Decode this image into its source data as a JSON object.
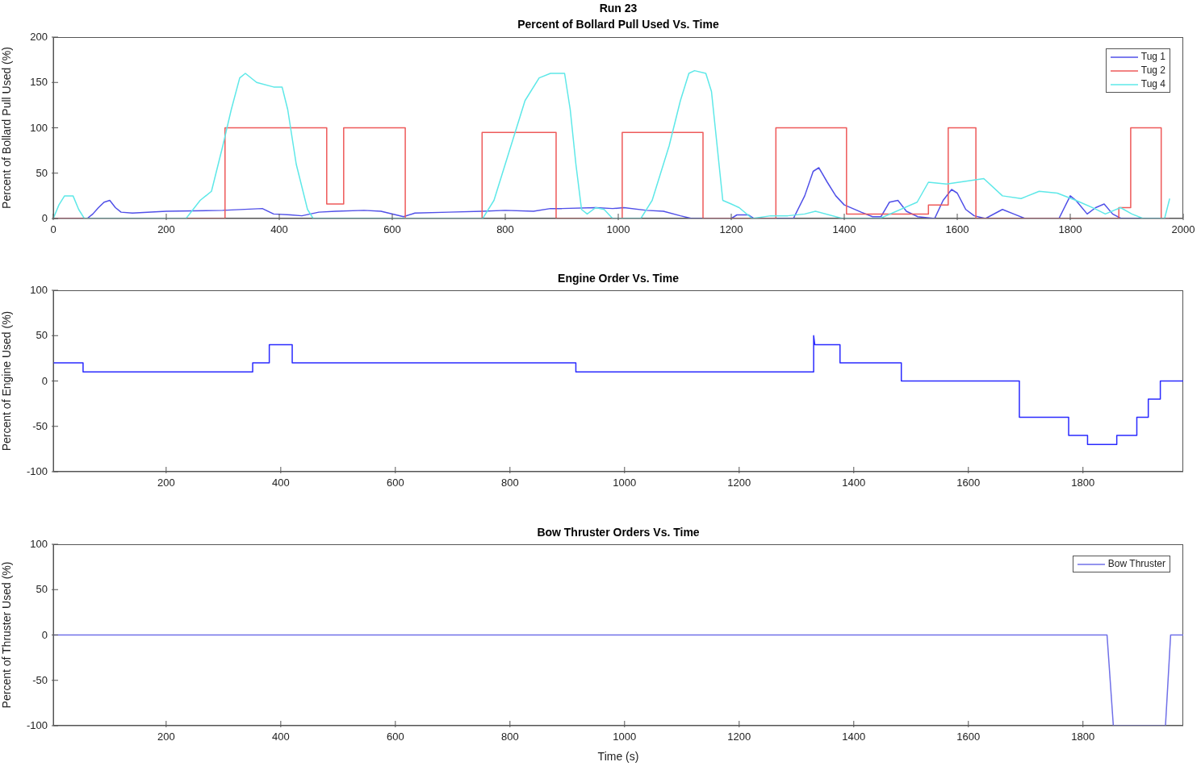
{
  "chart_data": [
    {
      "type": "line",
      "title": "Run 23",
      "subtitle": "Percent of Bollard Pull Used Vs. Time",
      "ylabel": "Percent of Bollard Pull Used (%)",
      "xlim": [
        0,
        2000
      ],
      "xticks": [
        0,
        200,
        400,
        600,
        800,
        1000,
        1200,
        1400,
        1600,
        1800,
        2000
      ],
      "ylim": [
        0,
        200
      ],
      "yticks": [
        0,
        50,
        100,
        150,
        200
      ],
      "grid": false,
      "legend": "top right",
      "marker": "none",
      "line_style": "solid",
      "series": [
        {
          "name": "Tug 1",
          "color": "#5050e8",
          "x": [
            0,
            60,
            70,
            80,
            90,
            100,
            110,
            120,
            140,
            200,
            300,
            370,
            390,
            420,
            440,
            470,
            500,
            550,
            580,
            620,
            640,
            700,
            760,
            800,
            850,
            880,
            900,
            960,
            990,
            1010,
            1050,
            1080,
            1110,
            1130,
            1200,
            1210,
            1230,
            1240,
            1310,
            1330,
            1345,
            1355,
            1370,
            1385,
            1400,
            1430,
            1450,
            1465,
            1480,
            1495,
            1510,
            1530,
            1560,
            1575,
            1590,
            1600,
            1615,
            1630,
            1650,
            1680,
            1700,
            1720,
            1780,
            1800,
            1810,
            1830,
            1845,
            1860,
            1875,
            1890,
            1975
          ],
          "values": [
            0,
            0,
            5,
            12,
            18,
            20,
            12,
            7,
            6,
            8,
            9,
            11,
            5,
            4,
            3,
            7,
            8,
            9,
            8,
            2,
            6,
            7,
            8,
            9,
            8,
            11,
            11,
            12,
            11,
            12,
            9,
            8,
            3,
            0,
            0,
            4,
            4,
            0,
            0,
            25,
            52,
            56,
            40,
            25,
            15,
            7,
            2,
            2,
            18,
            20,
            8,
            2,
            0,
            20,
            32,
            28,
            10,
            3,
            0,
            10,
            5,
            0,
            0,
            25,
            20,
            5,
            12,
            16,
            5,
            0,
            0
          ]
        },
        {
          "name": "Tug 2",
          "color": "#ee5a5a",
          "x": [
            0,
            304,
            304,
            484,
            484,
            514,
            514,
            623,
            623,
            759,
            759,
            890,
            890,
            1007,
            1007,
            1150,
            1150,
            1279,
            1279,
            1404,
            1404,
            1549,
            1549,
            1584,
            1584,
            1633,
            1633,
            1886,
            1886,
            1907,
            1907,
            1961,
            1961,
            1975
          ],
          "values": [
            0,
            0,
            100,
            100,
            16,
            16,
            100,
            100,
            0,
            0,
            95,
            95,
            0,
            0,
            95,
            95,
            0,
            0,
            100,
            100,
            5,
            5,
            15,
            15,
            100,
            100,
            0,
            0,
            12,
            12,
            100,
            100,
            0,
            0
          ]
        },
        {
          "name": "Tug 4",
          "color": "#5ee8e8",
          "x": [
            0,
            10,
            20,
            25,
            35,
            45,
            55,
            235,
            260,
            280,
            300,
            315,
            330,
            340,
            360,
            390,
            405,
            415,
            430,
            450,
            460,
            760,
            780,
            800,
            820,
            835,
            860,
            880,
            905,
            915,
            925,
            935,
            945,
            960,
            975,
            990,
            1040,
            1060,
            1070,
            1090,
            1110,
            1125,
            1135,
            1155,
            1165,
            1175,
            1185,
            1200,
            1214,
            1237,
            1270,
            1300,
            1330,
            1349,
            1397,
            1463,
            1529,
            1549,
            1581,
            1647,
            1680,
            1713,
            1745,
            1777,
            1810,
            1843,
            1862,
            1889,
            1909,
            1929,
            1967,
            1976
          ],
          "values": [
            0,
            15,
            25,
            25,
            25,
            10,
            0,
            0,
            20,
            30,
            80,
            120,
            155,
            160,
            150,
            145,
            145,
            120,
            60,
            10,
            0,
            0,
            20,
            60,
            100,
            130,
            155,
            160,
            160,
            120,
            60,
            10,
            5,
            12,
            10,
            0,
            0,
            20,
            40,
            80,
            130,
            160,
            163,
            160,
            140,
            80,
            20,
            16,
            12,
            0,
            3,
            3,
            5,
            8,
            0,
            0,
            18,
            40,
            38,
            44,
            25,
            22,
            30,
            28,
            20,
            11,
            5,
            12,
            5,
            0,
            0,
            22
          ]
        }
      ]
    },
    {
      "type": "line",
      "title": "Engine Order Vs. Time",
      "ylabel": "Percent of Engine Used (%)",
      "xlim": [
        3,
        1975
      ],
      "xticks": [
        200,
        400,
        600,
        800,
        1000,
        1200,
        1400,
        1600,
        1800
      ],
      "ylim": [
        -100,
        100
      ],
      "yticks": [
        -100,
        -50,
        0,
        50,
        100
      ],
      "grid": false,
      "legend": false,
      "marker": "none",
      "line_style": "solid",
      "series": [
        {
          "color": "#2a2aff",
          "x": [
            3,
            55,
            55,
            351,
            351,
            380,
            380,
            420,
            420,
            915,
            915,
            1330,
            1330,
            1332,
            1332,
            1376,
            1376,
            1483,
            1483,
            1689,
            1689,
            1775,
            1775,
            1808,
            1808,
            1859,
            1859,
            1894,
            1894,
            1914,
            1914,
            1935,
            1935,
            1975
          ],
          "values": [
            20,
            20,
            10,
            10,
            20,
            20,
            40,
            40,
            20,
            20,
            10,
            10,
            50,
            40,
            40,
            40,
            20,
            20,
            0,
            0,
            -40,
            -40,
            -60,
            -60,
            -70,
            -70,
            -60,
            -60,
            -40,
            -40,
            -20,
            -20,
            0,
            0
          ]
        }
      ]
    },
    {
      "type": "line",
      "title": "Bow Thruster Orders Vs. Time",
      "xlabel": "Time (s)",
      "ylabel": "Percent of Thruster Used (%)",
      "xlim": [
        3,
        1975
      ],
      "xticks": [
        200,
        400,
        600,
        800,
        1000,
        1200,
        1400,
        1600,
        1800
      ],
      "ylim": [
        -100,
        100
      ],
      "yticks": [
        -100,
        -50,
        0,
        50,
        100
      ],
      "grid": false,
      "legend": "top right",
      "marker": "none",
      "line_style": "solid",
      "series": [
        {
          "name": "Bow Thruster",
          "color": "#7070e8",
          "x": [
            3,
            1842,
            1853,
            1944,
            1953,
            1975
          ],
          "values": [
            0,
            0,
            -100,
            -100,
            0,
            0
          ]
        }
      ]
    }
  ]
}
